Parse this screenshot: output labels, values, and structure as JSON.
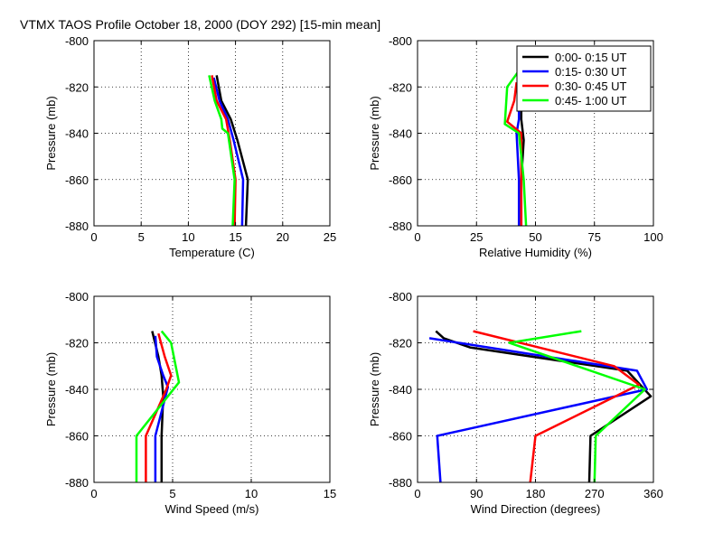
{
  "figure_title": "VTMX TAOS Profile   October 18, 2000 (DOY 292) [15-min mean]",
  "legend": [
    {
      "label": "0:00- 0:15 UT",
      "color": "#000000"
    },
    {
      "label": "0:15- 0:30 UT",
      "color": "#0000ff"
    },
    {
      "label": "0:30- 0:45 UT",
      "color": "#ff0000"
    },
    {
      "label": "0:45- 1:00 UT",
      "color": "#00ff00"
    }
  ],
  "chart_data": [
    {
      "type": "line",
      "id": "temperature",
      "title": "",
      "xlabel": "Temperature (C)",
      "ylabel": "Pressure (mb)",
      "xlim": [
        0,
        25
      ],
      "ylim": [
        -880,
        -800
      ],
      "xticks": [
        0,
        5,
        10,
        15,
        20,
        25
      ],
      "yticks": [
        -800,
        -820,
        -840,
        -860,
        -880
      ],
      "grid": true,
      "series": [
        {
          "name": "0:00- 0:15 UT",
          "points": [
            [
              13.0,
              -815
            ],
            [
              13.5,
              -826
            ],
            [
              14.5,
              -834
            ],
            [
              15.2,
              -843
            ],
            [
              16.3,
              -860
            ],
            [
              16.1,
              -880
            ]
          ]
        },
        {
          "name": "0:15- 0:30 UT",
          "points": [
            [
              12.7,
              -816
            ],
            [
              13.3,
              -826
            ],
            [
              14.2,
              -834
            ],
            [
              14.8,
              -843
            ],
            [
              15.8,
              -860
            ],
            [
              15.7,
              -880
            ]
          ]
        },
        {
          "name": "0:30- 0:45 UT",
          "points": [
            [
              12.5,
              -815
            ],
            [
              13.0,
              -826
            ],
            [
              14.0,
              -834
            ],
            [
              14.4,
              -843
            ],
            [
              15.0,
              -860
            ],
            [
              14.9,
              -880
            ]
          ]
        },
        {
          "name": "0:45- 1:00 UT",
          "points": [
            [
              12.2,
              -815
            ],
            [
              12.8,
              -826
            ],
            [
              13.5,
              -834
            ],
            [
              13.6,
              -838
            ],
            [
              14.2,
              -840
            ],
            [
              14.9,
              -860
            ],
            [
              14.7,
              -880
            ]
          ]
        }
      ]
    },
    {
      "type": "line",
      "id": "humidity",
      "title": "",
      "xlabel": "Relative Humidity (%)",
      "ylabel": "Pressure (mb)",
      "xlim": [
        0,
        100
      ],
      "ylim": [
        -880,
        -800
      ],
      "xticks": [
        0,
        25,
        50,
        75,
        100
      ],
      "yticks": [
        -800,
        -820,
        -840,
        -860,
        -880
      ],
      "grid": true,
      "series": [
        {
          "name": "0:00- 0:15 UT",
          "points": [
            [
              44,
              -815
            ],
            [
              44,
              -826
            ],
            [
              44,
              -834
            ],
            [
              45,
              -843
            ],
            [
              44,
              -860
            ],
            [
              44,
              -880
            ]
          ]
        },
        {
          "name": "0:15- 0:30 UT",
          "points": [
            [
              43,
              -815
            ],
            [
              43,
              -826
            ],
            [
              43,
              -834
            ],
            [
              42,
              -840
            ],
            [
              43,
              -860
            ],
            [
              43,
              -880
            ]
          ]
        },
        {
          "name": "0:30- 0:45 UT",
          "points": [
            [
              42,
              -818
            ],
            [
              41,
              -826
            ],
            [
              38,
              -835
            ],
            [
              44,
              -840
            ],
            [
              44,
              -860
            ],
            [
              44,
              -880
            ]
          ]
        },
        {
          "name": "0:45- 1:00 UT",
          "points": [
            [
              43,
              -813
            ],
            [
              38,
              -820
            ],
            [
              37,
              -836
            ],
            [
              43,
              -840
            ],
            [
              45,
              -860
            ],
            [
              46,
              -880
            ]
          ]
        }
      ]
    },
    {
      "type": "line",
      "id": "wind_speed",
      "title": "",
      "xlabel": "Wind Speed (m/s)",
      "ylabel": "Pressure (mb)",
      "xlim": [
        0,
        15
      ],
      "ylim": [
        -880,
        -800
      ],
      "xticks": [
        0,
        5,
        10,
        15
      ],
      "yticks": [
        -800,
        -820,
        -840,
        -860,
        -880
      ],
      "grid": true,
      "series": [
        {
          "name": "0:00- 0:15 UT",
          "points": [
            [
              3.7,
              -815
            ],
            [
              4.1,
              -826
            ],
            [
              4.3,
              -834
            ],
            [
              4.4,
              -843
            ],
            [
              4.3,
              -860
            ],
            [
              4.3,
              -880
            ]
          ]
        },
        {
          "name": "0:15- 0:30 UT",
          "points": [
            [
              3.9,
              -817
            ],
            [
              4.0,
              -826
            ],
            [
              4.4,
              -834
            ],
            [
              4.7,
              -839
            ],
            [
              3.9,
              -860
            ],
            [
              3.9,
              -880
            ]
          ]
        },
        {
          "name": "0:30- 0:45 UT",
          "points": [
            [
              4.1,
              -816
            ],
            [
              4.5,
              -826
            ],
            [
              4.9,
              -834
            ],
            [
              4.6,
              -840
            ],
            [
              3.3,
              -860
            ],
            [
              3.3,
              -880
            ]
          ]
        },
        {
          "name": "0:45- 1:00 UT",
          "points": [
            [
              4.3,
              -815
            ],
            [
              4.9,
              -820
            ],
            [
              5.4,
              -837
            ],
            [
              2.7,
              -860
            ],
            [
              2.7,
              -880
            ]
          ]
        }
      ]
    },
    {
      "type": "line",
      "id": "wind_direction",
      "title": "",
      "xlabel": "Wind Direction (degrees)",
      "ylabel": "Pressure (mb)",
      "xlim": [
        0,
        360
      ],
      "ylim": [
        -880,
        -800
      ],
      "xticks": [
        0,
        90,
        180,
        270,
        360
      ],
      "yticks": [
        -800,
        -820,
        -840,
        -860,
        -880
      ],
      "grid": true,
      "series": [
        {
          "name": "0:00- 0:15 UT",
          "points": [
            [
              28,
              -815
            ],
            [
              40,
              -818
            ],
            [
              80,
              -822
            ],
            [
              320,
              -832
            ],
            [
              356,
              -843
            ],
            [
              264,
              -860
            ],
            [
              262,
              -880
            ]
          ]
        },
        {
          "name": "0:15- 0:30 UT",
          "points": [
            [
              18,
              -818
            ],
            [
              335,
              -832
            ],
            [
              350,
              -840
            ],
            [
              30,
              -860
            ],
            [
              35,
              -880
            ]
          ]
        },
        {
          "name": "0:30- 0:45 UT",
          "points": [
            [
              85,
              -815
            ],
            [
              300,
              -830
            ],
            [
              338,
              -838
            ],
            [
              180,
              -860
            ],
            [
              172,
              -880
            ]
          ]
        },
        {
          "name": "0:45- 1:00 UT",
          "points": [
            [
              250,
              -815
            ],
            [
              140,
              -820
            ],
            [
              347,
              -840
            ],
            [
              272,
              -860
            ],
            [
              270,
              -880
            ]
          ]
        }
      ]
    }
  ]
}
